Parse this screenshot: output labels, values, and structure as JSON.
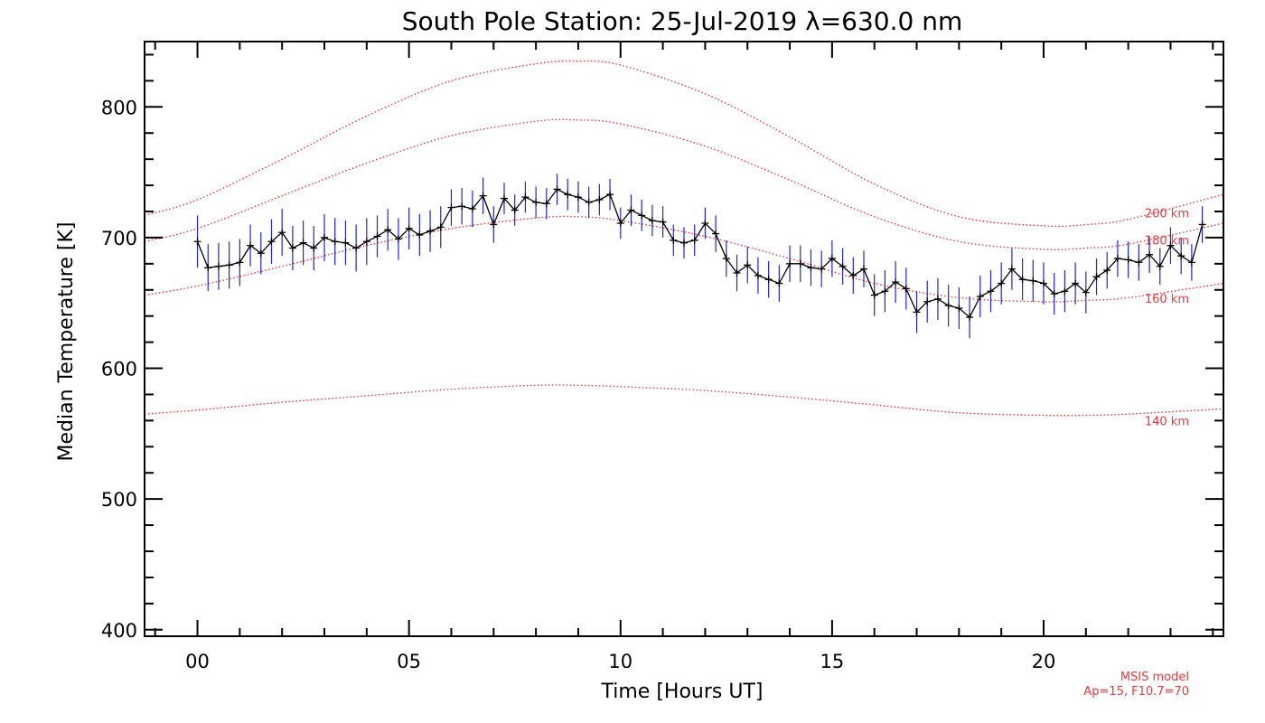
{
  "chart_data": {
    "type": "line",
    "title": "South Pole Station: 25-Jul-2019 λ=630.0 nm",
    "xlabel": "Time [Hours UT]",
    "ylabel": "Median Temperature [K]",
    "xlim": [
      -1.25,
      24.25
    ],
    "ylim": [
      395,
      850
    ],
    "x_ticks": [
      {
        "value": 0,
        "label": "00"
      },
      {
        "value": 5,
        "label": "05"
      },
      {
        "value": 10,
        "label": "10"
      },
      {
        "value": 15,
        "label": "15"
      },
      {
        "value": 20,
        "label": "20"
      }
    ],
    "y_ticks": [
      {
        "value": 400,
        "label": "400"
      },
      {
        "value": 500,
        "label": "500"
      },
      {
        "value": 600,
        "label": "600"
      },
      {
        "value": 700,
        "label": "700"
      },
      {
        "value": 800,
        "label": "800"
      }
    ],
    "grid": false,
    "note_lines": [
      "MSIS model",
      "Ap=15, F10.7=70"
    ],
    "series": [
      {
        "color": "#000000",
        "errorbar_color": "#2323d8",
        "x": [
          0.0,
          0.25,
          0.5,
          0.75,
          1.0,
          1.25,
          1.5,
          1.75,
          2.0,
          2.25,
          2.5,
          2.75,
          3.0,
          3.25,
          3.5,
          3.75,
          4.0,
          4.25,
          4.5,
          4.75,
          5.0,
          5.25,
          5.5,
          5.75,
          6.0,
          6.25,
          6.5,
          6.75,
          7.0,
          7.25,
          7.5,
          7.75,
          8.0,
          8.25,
          8.5,
          8.75,
          9.0,
          9.25,
          9.5,
          9.75,
          10.0,
          10.25,
          10.5,
          10.75,
          11.0,
          11.25,
          11.5,
          11.75,
          12.0,
          12.25,
          12.5,
          12.75,
          13.0,
          13.25,
          13.5,
          13.75,
          14.0,
          14.25,
          14.5,
          14.75,
          15.0,
          15.25,
          15.5,
          15.75,
          16.0,
          16.25,
          16.5,
          16.75,
          17.0,
          17.25,
          17.5,
          17.75,
          18.0,
          18.25,
          18.5,
          18.75,
          19.0,
          19.25,
          19.5,
          19.75,
          20.0,
          20.25,
          20.5,
          20.75,
          21.0,
          21.25,
          21.5,
          21.75,
          22.0,
          22.25,
          22.5,
          22.75,
          23.0,
          23.25,
          23.5,
          23.75
        ],
        "y": [
          697,
          677,
          678,
          679,
          681,
          694,
          688,
          697,
          704,
          692,
          696,
          692,
          700,
          697,
          696,
          692,
          697,
          701,
          706,
          699,
          707,
          702,
          705,
          708,
          723,
          724,
          722,
          732,
          710,
          730,
          721,
          731,
          727,
          726,
          737,
          733,
          731,
          727,
          729,
          733,
          711,
          721,
          717,
          713,
          712,
          698,
          696,
          698,
          711,
          703,
          684,
          673,
          679,
          671,
          668,
          665,
          680,
          680,
          677,
          676,
          684,
          678,
          671,
          676,
          656,
          659,
          666,
          661,
          643,
          651,
          653,
          648,
          646,
          639,
          655,
          659,
          665,
          676,
          668,
          667,
          665,
          657,
          659,
          665,
          658,
          670,
          675,
          684,
          683,
          681,
          687,
          678,
          694,
          686,
          681,
          710
        ],
        "err": [
          20,
          18,
          18,
          18,
          18,
          16,
          16,
          17,
          18,
          17,
          17,
          17,
          18,
          18,
          17,
          18,
          18,
          16,
          16,
          16,
          16,
          16,
          16,
          16,
          14,
          14,
          14,
          14,
          14,
          12,
          12,
          12,
          12,
          12,
          12,
          12,
          12,
          12,
          12,
          12,
          12,
          12,
          12,
          12,
          12,
          12,
          12,
          12,
          12,
          14,
          14,
          14,
          14,
          14,
          14,
          14,
          14,
          14,
          14,
          14,
          14,
          14,
          14,
          14,
          16,
          16,
          16,
          16,
          16,
          16,
          16,
          16,
          16,
          16,
          16,
          16,
          16,
          16,
          16,
          16,
          16,
          16,
          16,
          16,
          16,
          14,
          14,
          14,
          14,
          14,
          14,
          14,
          14,
          14,
          14,
          14
        ]
      }
    ],
    "model_curves": [
      {
        "label": "200 km",
        "color": "#e8383d",
        "x": [
          -1.25,
          0,
          2,
          4,
          6,
          8,
          9,
          10,
          12,
          14,
          16,
          18,
          20,
          21,
          22,
          24.25
        ],
        "y": [
          717,
          729,
          760,
          793,
          820,
          833,
          835,
          832,
          810,
          777,
          741,
          716,
          709,
          710,
          714,
          733
        ]
      },
      {
        "label": "180 km",
        "color": "#e8383d",
        "x": [
          -1.25,
          0,
          2,
          4,
          6,
          8,
          9,
          10,
          12,
          14,
          16,
          18,
          20,
          21,
          22,
          24.25
        ],
        "y": [
          697,
          707,
          732,
          757,
          778,
          789,
          790,
          787,
          770,
          744,
          716,
          697,
          691,
          692,
          695,
          711
        ]
      },
      {
        "label": "160 km",
        "color": "#e8383d",
        "x": [
          -1.25,
          0,
          2,
          4,
          6,
          8,
          9,
          10,
          12,
          14,
          16,
          18,
          20,
          21,
          22,
          24.25
        ],
        "y": [
          656,
          663,
          678,
          694,
          707,
          715,
          716,
          713,
          701,
          684,
          665,
          654,
          651,
          652,
          654,
          665
        ]
      },
      {
        "label": "140 km",
        "color": "#e8383d",
        "x": [
          -1.25,
          0,
          2,
          4,
          6,
          8,
          9,
          10,
          12,
          14,
          16,
          18,
          20,
          21,
          22,
          24.25
        ],
        "y": [
          565,
          568,
          574,
          579,
          584,
          587,
          587,
          586,
          583,
          578,
          572,
          566,
          564,
          564,
          565,
          569
        ]
      }
    ]
  }
}
